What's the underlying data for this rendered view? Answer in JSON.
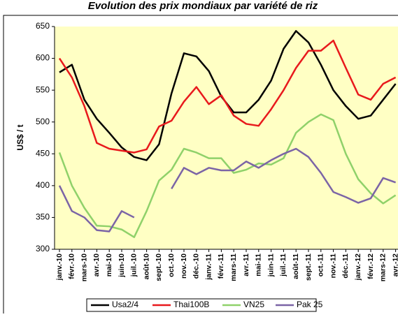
{
  "chart_data": {
    "type": "line",
    "title": "Evolution des prix mondiaux par variété de riz",
    "y_label": "US$ / t",
    "categories": [
      "janv.-10",
      "févr.-10",
      "mars-10",
      "avr.-10",
      "mai-10",
      "juin-10",
      "juil.-10",
      "août-10",
      "sept.-10",
      "oct.-10",
      "nov.-10",
      "déc.-10",
      "janv.-11",
      "févr.-11",
      "mars-11",
      "avr.-11",
      "mai-11",
      "juin-11",
      "juil.-11",
      "août-11",
      "sept.-11",
      "oct.-11",
      "nov.-11",
      "déc.-11",
      "janv.-12",
      "févr.-12",
      "mars-12",
      "avr.-12"
    ],
    "series": [
      {
        "name": "Usa2/4",
        "color": "#000000",
        "values": [
          578,
          590,
          535,
          505,
          483,
          460,
          445,
          440,
          465,
          545,
          608,
          603,
          580,
          540,
          515,
          515,
          535,
          565,
          615,
          643,
          625,
          590,
          550,
          525,
          505,
          510,
          535,
          560
        ]
      },
      {
        "name": "Thai100B",
        "color": "#e8191c",
        "values": [
          600,
          570,
          525,
          467,
          458,
          455,
          452,
          457,
          493,
          502,
          532,
          555,
          528,
          542,
          510,
          497,
          494,
          520,
          550,
          585,
          612,
          612,
          628,
          585,
          543,
          535,
          560,
          570
        ]
      },
      {
        "name": "VN25",
        "color": "#8fd16a",
        "values": [
          452,
          400,
          365,
          337,
          336,
          331,
          319,
          360,
          408,
          425,
          458,
          452,
          443,
          443,
          420,
          425,
          435,
          433,
          443,
          483,
          500,
          512,
          503,
          450,
          410,
          388,
          372,
          385
        ]
      },
      {
        "name": "Pak 25",
        "color": "#7b64a6",
        "values": [
          400,
          360,
          350,
          330,
          328,
          360,
          350,
          null,
          null,
          395,
          428,
          418,
          428,
          424,
          424,
          438,
          428,
          440,
          450,
          458,
          445,
          420,
          390,
          382,
          373,
          380,
          412,
          405
        ]
      }
    ],
    "ylim": [
      300,
      650
    ],
    "yticks": [
      300,
      350,
      400,
      450,
      500,
      550,
      600,
      650
    ]
  }
}
